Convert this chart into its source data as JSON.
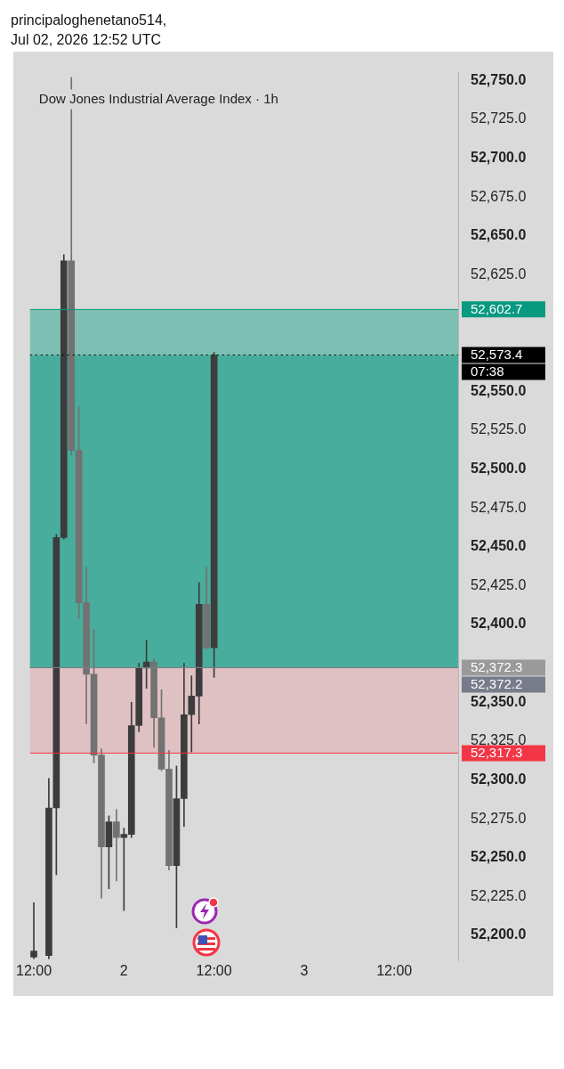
{
  "chart_data": {
    "type": "candlestick",
    "title": "Dow Jones Industrial Average Index · 1h",
    "annotations": [
      "principaloghenetano514,",
      "Jul 02, 2026 12:52 UTC",
      "07:38"
    ],
    "categories": [
      "12:00",
      null,
      null,
      null,
      null,
      null,
      null,
      null,
      null,
      null,
      null,
      null,
      "2",
      null,
      null,
      null,
      null,
      null,
      null,
      null,
      null,
      null,
      null,
      null,
      "12:00",
      null,
      null,
      null,
      null,
      null,
      null,
      null,
      null,
      null,
      null,
      null,
      "3",
      null,
      null,
      null,
      null,
      null,
      null,
      null,
      null,
      null,
      null,
      null,
      "12:00",
      null,
      null,
      null,
      null,
      null,
      null,
      null,
      null
    ],
    "series": [
      {
        "colors": [
          "#3c3c3c",
          null,
          "#3c3c3c",
          "#3c3c3c",
          "#3c3c3c",
          "#727272",
          "#727272",
          "#727272",
          "#727272",
          "#727272",
          "#3c3c3c",
          "#727272",
          "#3c3c3c",
          "#3c3c3c",
          "#3c3c3c",
          "#3c3c3c",
          "#727272",
          "#727272",
          "#727272",
          "#3c3c3c",
          "#3c3c3c",
          "#3c3c3c",
          "#3c3c3c",
          "#727272",
          "#3c3c3c",
          null,
          null,
          null,
          null,
          null,
          null,
          null,
          null,
          null,
          null,
          null,
          null,
          null,
          null,
          null,
          null,
          null,
          null,
          null,
          null,
          null,
          null,
          null,
          null,
          null,
          null,
          null,
          null,
          null,
          null,
          null,
          null
        ],
        "ohlc": [
          [
            52186,
            52221,
            52185,
            52190
          ],
          null,
          [
            52187,
            52301,
            52185,
            52282
          ],
          [
            52282,
            52458,
            52239,
            52456
          ],
          [
            52456,
            52638,
            52455,
            52634
          ],
          [
            52634,
            52752,
            52509,
            52512
          ],
          [
            52512,
            52540,
            52404,
            52414
          ],
          [
            52414,
            52437,
            52336,
            52368
          ],
          [
            52368,
            52397,
            52311,
            52316
          ],
          [
            52316,
            52320,
            52224,
            52257
          ],
          [
            52257,
            52277,
            52230,
            52273
          ],
          [
            52273,
            52281,
            52235,
            52263
          ],
          [
            52263,
            52269,
            52216,
            52265
          ],
          [
            52265,
            52350,
            52263,
            52335
          ],
          [
            52335,
            52375,
            52331,
            52372
          ],
          [
            52372,
            52390,
            52359,
            52376
          ],
          [
            52376,
            52378,
            52321,
            52340
          ],
          [
            52340,
            52358,
            52306,
            52307
          ],
          [
            52307,
            52319,
            52242,
            52245
          ],
          [
            52245,
            52309,
            52205,
            52288
          ],
          [
            52288,
            52375,
            52270,
            52342
          ],
          [
            52342,
            52367,
            52318,
            52354
          ],
          [
            52354,
            52427,
            52336,
            52413
          ],
          [
            52413,
            52437,
            52384,
            52385
          ],
          [
            52385,
            52575,
            52366,
            52573.4
          ],
          null,
          null,
          null,
          null,
          null,
          null,
          null,
          null,
          null,
          null,
          null,
          null,
          null,
          null,
          null,
          null,
          null,
          null,
          null,
          null,
          null,
          null,
          null,
          null,
          null,
          null,
          null,
          null,
          null,
          null,
          null,
          null
        ]
      }
    ],
    "ylim": [
      52184,
      52755
    ],
    "yticks": [
      {
        "value": 52200,
        "label": "52,200.0"
      },
      {
        "value": 52225,
        "label": "52,225.0"
      },
      {
        "value": 52250,
        "label": "52,250.0"
      },
      {
        "value": 52275,
        "label": "52,275.0"
      },
      {
        "value": 52300,
        "label": "52,300.0"
      },
      {
        "value": 52325,
        "label": "52,325.0"
      },
      {
        "value": 52350,
        "label": "52,350.0"
      },
      {
        "value": 52400,
        "label": "52,400.0"
      },
      {
        "value": 52425,
        "label": "52,425.0"
      },
      {
        "value": 52450,
        "label": "52,450.0"
      },
      {
        "value": 52475,
        "label": "52,475.0"
      },
      {
        "value": 52500,
        "label": "52,500.0"
      },
      {
        "value": 52525,
        "label": "52,525.0"
      },
      {
        "value": 52550,
        "label": "52,550.0"
      },
      {
        "value": 52625,
        "label": "52,625.0"
      },
      {
        "value": 52650,
        "label": "52,650.0"
      },
      {
        "value": 52675,
        "label": "52,675.0"
      },
      {
        "value": 52700,
        "label": "52,700.0"
      },
      {
        "value": 52725,
        "label": "52,725.0"
      },
      {
        "value": 52750,
        "label": "52,750.0"
      }
    ],
    "bands": [
      {
        "axis": "y",
        "from": 52372.3,
        "to": 52602.7,
        "color": "#7dbfb3"
      },
      {
        "axis": "y",
        "from": 52372.3,
        "to": 52573.4,
        "color": "#48ad9c"
      },
      {
        "axis": "y",
        "from": 52317.3,
        "to": 52372.3,
        "color": "#e0c1c3"
      }
    ],
    "ref_lines": [
      {
        "axis": "y",
        "value": 52602.7,
        "label": "52,602.7",
        "color": "#089981"
      },
      {
        "axis": "y",
        "value": 52573.4,
        "label": "52,573.4",
        "color": "#000000",
        "line_style": "dotted"
      },
      {
        "axis": "y",
        "value": 52372.3,
        "label": "52,372.3",
        "color": "#9a9a9a"
      },
      {
        "axis": "y",
        "value": 52372.2,
        "label": "52,372.2",
        "color": "#787b8a"
      },
      {
        "axis": "y",
        "value": 52317.3,
        "label": "52,317.3",
        "color": "#f23645"
      }
    ],
    "grid": false,
    "legend": false
  }
}
